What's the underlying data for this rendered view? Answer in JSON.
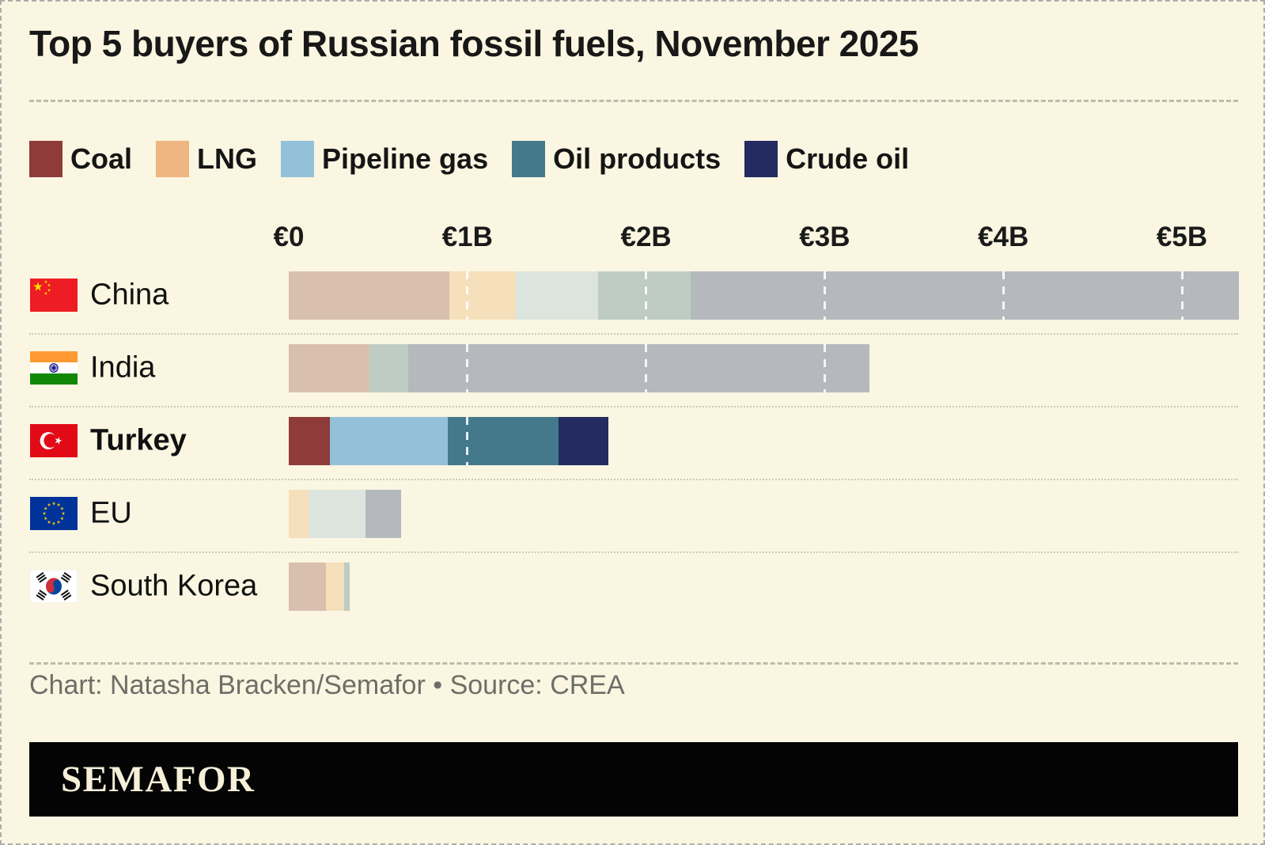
{
  "title": "Top 5 buyers of Russian fossil fuels, November 2025",
  "legend": [
    {
      "key": "coal",
      "label": "Coal"
    },
    {
      "key": "lng",
      "label": "LNG"
    },
    {
      "key": "pipeline_gas",
      "label": "Pipeline gas"
    },
    {
      "key": "oil_products",
      "label": "Oil products"
    },
    {
      "key": "crude_oil",
      "label": "Crude oil"
    }
  ],
  "colors": {
    "full": {
      "coal": "#8E3B3A",
      "lng": "#EFB582",
      "pipeline_gas": "#93C1D9",
      "oil_products": "#44798C",
      "crude_oil": "#232B60"
    },
    "muted": {
      "coal": "#D9BFAD",
      "lng": "#F6DFBB",
      "pipeline_gas": "#DCE5DD",
      "oil_products": "#BECCC3",
      "crude_oil": "#B5B9BE"
    }
  },
  "chart_data": {
    "type": "bar",
    "orientation": "horizontal",
    "stacked": true,
    "unit": "EUR billions",
    "title": "Top 5 buyers of Russian fossil fuels, November 2025",
    "x_ticks": [
      "€0",
      "€1B",
      "€2B",
      "€3B",
      "€4B",
      "€5B"
    ],
    "x_tick_values": [
      0,
      1,
      2,
      3,
      4,
      5
    ],
    "xlim": [
      0,
      5.35
    ],
    "grid": "dashed white tick lines over bars",
    "legend_position": "top",
    "highlight_row": "Turkey",
    "series_keys": [
      "coal",
      "lng",
      "pipeline_gas",
      "oil_products",
      "crude_oil"
    ],
    "rows": [
      {
        "label": "China",
        "flag": "china",
        "segments": {
          "coal": 0.9,
          "lng": 0.37,
          "pipeline_gas": 0.46,
          "oil_products": 0.52,
          "crude_oil": 3.07
        }
      },
      {
        "label": "India",
        "flag": "india",
        "segments": {
          "coal": 0.45,
          "lng": 0,
          "pipeline_gas": 0,
          "oil_products": 0.22,
          "crude_oil": 2.58
        }
      },
      {
        "label": "Turkey",
        "flag": "turkey",
        "segments": {
          "coal": 0.23,
          "lng": 0,
          "pipeline_gas": 0.66,
          "oil_products": 0.62,
          "crude_oil": 0.28
        }
      },
      {
        "label": "EU",
        "flag": "eu",
        "segments": {
          "coal": 0,
          "lng": 0.11,
          "pipeline_gas": 0.32,
          "oil_products": 0,
          "crude_oil": 0.2
        }
      },
      {
        "label": "South Korea",
        "flag": "south_korea",
        "segments": {
          "coal": 0.21,
          "lng": 0.1,
          "pipeline_gas": 0,
          "oil_products": 0.03,
          "crude_oil": 0
        }
      }
    ]
  },
  "footer": {
    "credit": "Chart: Natasha Bracken/Semafor • Source: CREA",
    "brand": "SEMAFOR"
  }
}
